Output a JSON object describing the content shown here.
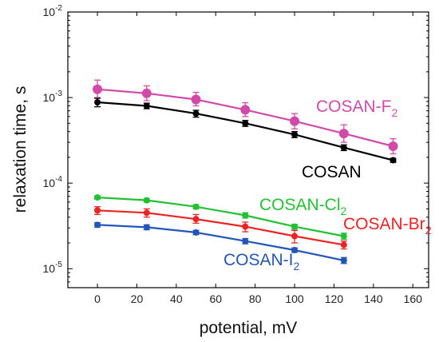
{
  "chart_data": {
    "type": "line",
    "xlabel": "potential, mV",
    "ylabel": "relaxation time, s",
    "xlim": [
      -15,
      168
    ],
    "ylim": [
      6e-06,
      0.01
    ],
    "y_scale": "log",
    "grid": false,
    "x_ticks": [
      "0",
      "20",
      "40",
      "60",
      "80",
      "100",
      "120",
      "140",
      "160"
    ],
    "y_ticks": [
      {
        "base": "10",
        "exp": "-5"
      },
      {
        "base": "10",
        "exp": "-4"
      },
      {
        "base": "10",
        "exp": "-3"
      },
      {
        "base": "10",
        "exp": "-2"
      }
    ],
    "series": [
      {
        "name_base": "COSAN-F",
        "name_sub": "2",
        "color": "#d24aa8",
        "x": [
          0,
          25,
          50,
          75,
          100,
          125,
          150
        ],
        "y": [
          0.00125,
          0.00112,
          0.00095,
          0.00072,
          0.00053,
          0.00038,
          0.00027
        ],
        "err_up": [
          0.00035,
          0.00025,
          0.0002,
          0.00015,
          0.00012,
          0.0001,
          6e-05
        ],
        "err_down": [
          0.00025,
          0.0002,
          0.00015,
          0.00012,
          0.0001,
          8e-05,
          5e-05
        ]
      },
      {
        "name_base": "COSAN",
        "name_sub": "",
        "color": "#000000",
        "x": [
          0,
          25,
          50,
          75,
          100,
          125,
          150
        ],
        "y": [
          0.00088,
          0.0008,
          0.00065,
          0.0005,
          0.00037,
          0.00026,
          0.000185
        ],
        "err_up": [
          0.0001,
          6e-05,
          6e-05,
          4e-05,
          3e-05,
          2e-05,
          1e-05
        ],
        "err_down": [
          0.0001,
          6e-05,
          6e-05,
          4e-05,
          3e-05,
          2e-05,
          1e-05
        ]
      },
      {
        "name_base": "COSAN-Cl",
        "name_sub": "2",
        "color": "#22c132",
        "x": [
          0,
          25,
          50,
          75,
          100,
          125
        ],
        "y": [
          6.8e-05,
          6.3e-05,
          5.3e-05,
          4.2e-05,
          3.1e-05,
          2.4e-05
        ],
        "err_up": [
          3e-06,
          3e-06,
          3e-06,
          3e-06,
          2e-06,
          2e-06
        ],
        "err_down": [
          3e-06,
          3e-06,
          3e-06,
          3e-06,
          2e-06,
          2e-06
        ]
      },
      {
        "name_base": "COSAN-Br",
        "name_sub": "2",
        "color": "#ee2222",
        "x": [
          0,
          25,
          50,
          75,
          100,
          125
        ],
        "y": [
          4.8e-05,
          4.5e-05,
          3.8e-05,
          3.1e-05,
          2.4e-05,
          1.9e-05
        ],
        "err_up": [
          5e-06,
          5e-06,
          5e-06,
          4e-06,
          4e-06,
          2e-06
        ],
        "err_down": [
          5e-06,
          5e-06,
          4e-06,
          4e-06,
          4e-06,
          2e-06
        ]
      },
      {
        "name_base": "COSAN-I",
        "name_sub": "2",
        "color": "#2255b8",
        "x": [
          0,
          25,
          50,
          75,
          100,
          125
        ],
        "y": [
          3.25e-05,
          3.05e-05,
          2.65e-05,
          2.1e-05,
          1.65e-05,
          1.25e-05
        ],
        "err_up": [
          2e-06,
          2e-06,
          1.5e-06,
          1.5e-06,
          1e-06,
          1e-06
        ],
        "err_down": [
          2e-06,
          2e-06,
          1.5e-06,
          1.5e-06,
          1e-06,
          1e-06
        ]
      }
    ]
  }
}
